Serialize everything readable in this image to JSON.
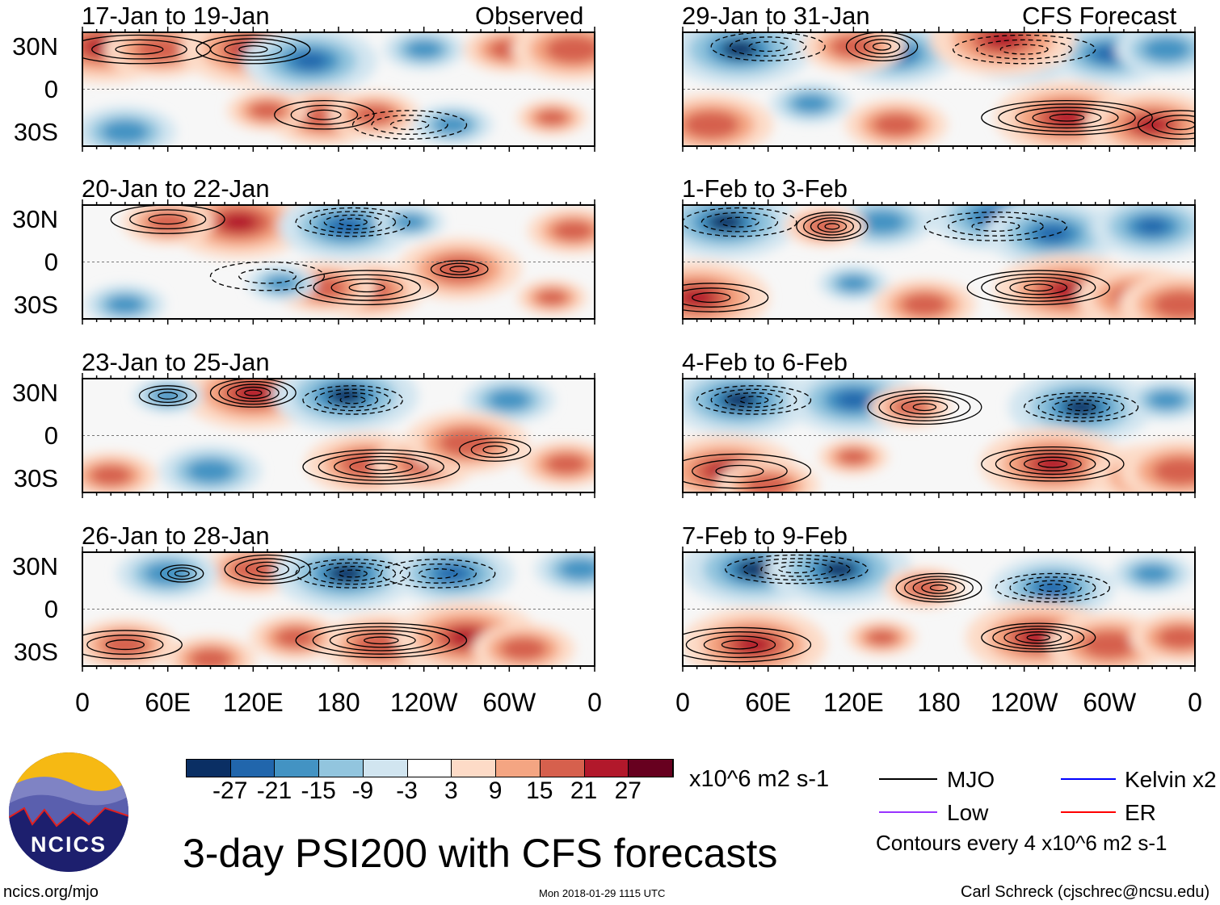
{
  "header": {
    "left_label": "Observed",
    "right_label": "CFS Forecast"
  },
  "lat_labels": [
    "30N",
    "0",
    "30S"
  ],
  "lon_labels": [
    "0",
    "60E",
    "120E",
    "180",
    "120W",
    "60W",
    "0"
  ],
  "colors": [
    "#0a2f64",
    "#2166ac",
    "#4393c3",
    "#92c5de",
    "#d1e5f0",
    "#ffffff",
    "#fddbc7",
    "#f4a582",
    "#d6604d",
    "#b2182b",
    "#67001f"
  ],
  "chart_data": {
    "type": "heatmap",
    "title": "3-day PSI200 with CFS forecasts",
    "units": "x10^6 m2 s-1",
    "colorbar_ticks": [
      "-27",
      "-21",
      "-15",
      "-9",
      "-3",
      "3",
      "9",
      "15",
      "21",
      "27"
    ],
    "panels": [
      {
        "title": "17-Jan to 19-Jan",
        "anom": [
          [
            15,
            30,
            27
          ],
          [
            55,
            28,
            18
          ],
          [
            120,
            28,
            27
          ],
          [
            160,
            20,
            -24
          ],
          [
            240,
            28,
            -9
          ],
          [
            300,
            28,
            12
          ],
          [
            345,
            28,
            21
          ],
          [
            170,
            -20,
            18
          ],
          [
            205,
            -18,
            12
          ],
          [
            30,
            -30,
            -15
          ],
          [
            130,
            -15,
            9
          ],
          [
            260,
            -25,
            -9
          ],
          [
            330,
            -20,
            6
          ]
        ],
        "contours": [
          [
            120,
            28,
            40,
            10,
            4
          ],
          [
            170,
            -18,
            35,
            10,
            3
          ],
          [
            230,
            -25,
            40,
            10,
            -3
          ],
          [
            40,
            28,
            50,
            10,
            3
          ]
        ]
      },
      {
        "title": "20-Jan to 22-Jan",
        "anom": [
          [
            110,
            28,
            27
          ],
          [
            60,
            28,
            12
          ],
          [
            185,
            25,
            -24
          ],
          [
            230,
            28,
            -6
          ],
          [
            345,
            22,
            12
          ],
          [
            200,
            -20,
            18
          ],
          [
            170,
            -18,
            15
          ],
          [
            265,
            -5,
            21
          ],
          [
            30,
            -30,
            -9
          ],
          [
            140,
            -15,
            -6
          ],
          [
            330,
            -25,
            6
          ]
        ],
        "contours": [
          [
            60,
            30,
            40,
            10,
            3
          ],
          [
            190,
            28,
            40,
            10,
            -4
          ],
          [
            200,
            -18,
            50,
            12,
            4
          ],
          [
            265,
            -5,
            20,
            6,
            3
          ],
          [
            130,
            -10,
            40,
            10,
            -2
          ]
        ]
      },
      {
        "title": "23-Jan to 25-Jan",
        "anom": [
          [
            120,
            30,
            27
          ],
          [
            185,
            28,
            -27
          ],
          [
            60,
            28,
            -6
          ],
          [
            300,
            25,
            -12
          ],
          [
            200,
            -20,
            21
          ],
          [
            240,
            -20,
            15
          ],
          [
            270,
            -5,
            21
          ],
          [
            20,
            -28,
            12
          ],
          [
            90,
            -25,
            -15
          ],
          [
            340,
            -20,
            12
          ]
        ],
        "contours": [
          [
            120,
            30,
            30,
            10,
            5
          ],
          [
            60,
            28,
            20,
            7,
            3
          ],
          [
            190,
            25,
            35,
            10,
            -4
          ],
          [
            210,
            -22,
            55,
            12,
            5
          ],
          [
            290,
            -10,
            25,
            8,
            3
          ]
        ]
      },
      {
        "title": "26-Jan to 28-Jan",
        "anom": [
          [
            120,
            28,
            15
          ],
          [
            60,
            25,
            -15
          ],
          [
            185,
            25,
            -27
          ],
          [
            260,
            25,
            -21
          ],
          [
            350,
            28,
            -12
          ],
          [
            210,
            -25,
            21
          ],
          [
            270,
            -20,
            27
          ],
          [
            310,
            -28,
            15
          ],
          [
            30,
            -25,
            15
          ],
          [
            150,
            -20,
            12
          ],
          [
            90,
            -35,
            12
          ]
        ],
        "contours": [
          [
            130,
            28,
            30,
            10,
            4
          ],
          [
            70,
            25,
            15,
            6,
            3
          ],
          [
            190,
            25,
            40,
            10,
            -4
          ],
          [
            250,
            25,
            40,
            10,
            -3
          ],
          [
            210,
            -22,
            60,
            12,
            5
          ],
          [
            30,
            -25,
            40,
            10,
            3
          ]
        ]
      },
      {
        "title": "29-Jan to 31-Jan",
        "anom": [
          [
            40,
            28,
            -27
          ],
          [
            150,
            25,
            -21
          ],
          [
            240,
            28,
            -24
          ],
          [
            300,
            25,
            -21
          ],
          [
            340,
            28,
            -15
          ],
          [
            225,
            35,
            27
          ],
          [
            120,
            30,
            15
          ],
          [
            20,
            -25,
            21
          ],
          [
            270,
            -20,
            27
          ],
          [
            330,
            -25,
            24
          ],
          [
            150,
            -25,
            15
          ],
          [
            90,
            -10,
            -9
          ]
        ],
        "contours": [
          [
            140,
            30,
            25,
            10,
            4
          ],
          [
            60,
            30,
            40,
            10,
            -3
          ],
          [
            270,
            -20,
            60,
            12,
            5
          ],
          [
            350,
            -25,
            30,
            10,
            3
          ],
          [
            240,
            28,
            50,
            10,
            -3
          ]
        ]
      },
      {
        "title": "1-Feb to 3-Feb",
        "anom": [
          [
            30,
            28,
            -27
          ],
          [
            140,
            28,
            -15
          ],
          [
            220,
            32,
            -24
          ],
          [
            260,
            20,
            -24
          ],
          [
            330,
            25,
            -21
          ],
          [
            100,
            25,
            9
          ],
          [
            10,
            -25,
            27
          ],
          [
            270,
            -20,
            27
          ],
          [
            320,
            -25,
            21
          ],
          [
            120,
            -15,
            -6
          ],
          [
            170,
            -30,
            15
          ],
          [
            350,
            -30,
            21
          ]
        ],
        "contours": [
          [
            105,
            25,
            25,
            10,
            5
          ],
          [
            40,
            28,
            40,
            10,
            -3
          ],
          [
            250,
            -18,
            50,
            12,
            5
          ],
          [
            20,
            -25,
            40,
            10,
            3
          ],
          [
            220,
            25,
            50,
            10,
            -3
          ]
        ]
      },
      {
        "title": "4-Feb to 6-Feb",
        "anom": [
          [
            40,
            25,
            -27
          ],
          [
            120,
            25,
            -24
          ],
          [
            280,
            20,
            -27
          ],
          [
            340,
            25,
            -9
          ],
          [
            160,
            20,
            9
          ],
          [
            30,
            -25,
            27
          ],
          [
            260,
            -20,
            27
          ],
          [
            330,
            -28,
            21
          ],
          [
            120,
            -15,
            6
          ],
          [
            350,
            -25,
            21
          ],
          [
            60,
            -35,
            15
          ]
        ],
        "contours": [
          [
            170,
            20,
            40,
            12,
            5
          ],
          [
            50,
            25,
            40,
            10,
            -4
          ],
          [
            280,
            20,
            40,
            10,
            -4
          ],
          [
            260,
            -20,
            50,
            12,
            5
          ],
          [
            40,
            -25,
            50,
            12,
            3
          ]
        ]
      },
      {
        "title": "7-Feb to 9-Feb",
        "anom": [
          [
            50,
            28,
            -27
          ],
          [
            110,
            28,
            -27
          ],
          [
            260,
            15,
            -21
          ],
          [
            330,
            25,
            -9
          ],
          [
            170,
            15,
            9
          ],
          [
            50,
            -25,
            27
          ],
          [
            250,
            -20,
            27
          ],
          [
            300,
            -25,
            21
          ],
          [
            350,
            -20,
            15
          ],
          [
            140,
            -20,
            6
          ]
        ],
        "contours": [
          [
            180,
            15,
            30,
            10,
            5
          ],
          [
            80,
            28,
            50,
            10,
            -4
          ],
          [
            260,
            15,
            40,
            10,
            -4
          ],
          [
            250,
            -20,
            40,
            10,
            5
          ],
          [
            40,
            -25,
            50,
            12,
            4
          ]
        ]
      }
    ]
  },
  "legend": {
    "units": "x10^6 m2 s-1",
    "items": [
      {
        "label": "MJO",
        "color": "#000000"
      },
      {
        "label": "Kelvin x2",
        "color": "#0000ff"
      },
      {
        "label": "Low",
        "color": "#9933ff"
      },
      {
        "label": "ER",
        "color": "#ff0000"
      }
    ],
    "note": "Contours every 4 x10^6 m2 s-1"
  },
  "footer": {
    "title": "3-day PSI200 with CFS forecasts",
    "site": "ncics.org/mjo",
    "timestamp": "Mon 2018-01-29 1115 UTC",
    "author": "Carl Schreck (cjschrec@ncsu.edu)",
    "logo_text": "NCICS"
  }
}
